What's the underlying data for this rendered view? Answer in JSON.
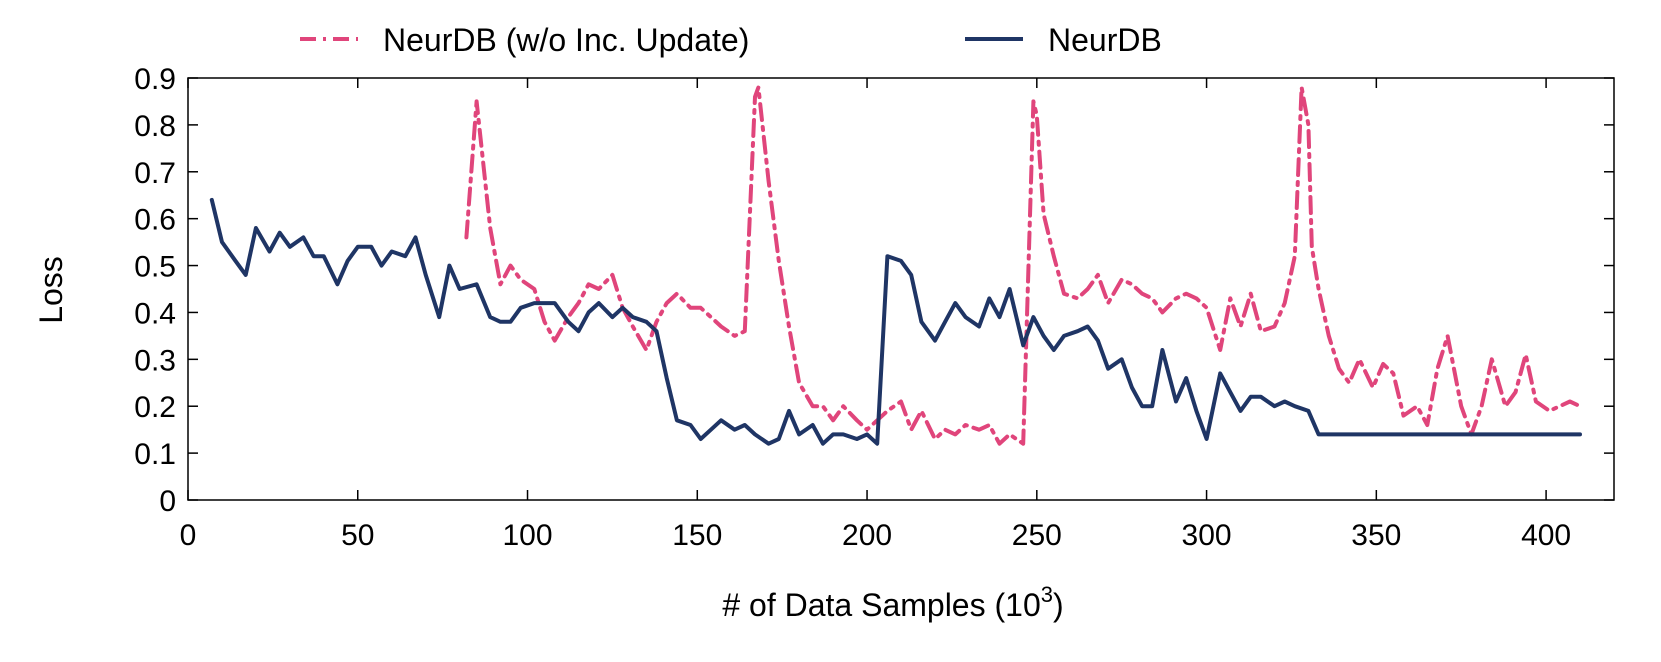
{
  "chart_data": {
    "type": "line",
    "xlabel": "# of Data Samples (10",
    "xlabel_superscript": "3",
    "xlabel_suffix": ")",
    "ylabel": "Loss",
    "xlim": [
      0,
      420
    ],
    "ylim": [
      0,
      0.9
    ],
    "xticks": [
      0,
      50,
      100,
      150,
      200,
      250,
      300,
      350,
      400
    ],
    "yticks": [
      0,
      0.1,
      0.2,
      0.3,
      0.4,
      0.5,
      0.6,
      0.7,
      0.8,
      0.9
    ],
    "ytick_labels": [
      "0",
      "0.1",
      "0.2",
      "0.3",
      "0.4",
      "0.5",
      "0.6",
      "0.7",
      "0.8",
      "0.9"
    ],
    "legend_position": "top",
    "series": [
      {
        "name": "NeurDB (w/o Inc. Update)",
        "color": "#e0457b",
        "style": "dash-dot",
        "x": [
          82,
          85,
          89,
          92,
          95,
          98,
          102,
          105,
          108,
          112,
          115,
          118,
          121,
          125,
          128,
          131,
          135,
          138,
          141,
          144,
          148,
          151,
          154,
          157,
          161,
          164,
          167,
          168,
          171,
          174,
          177,
          180,
          184,
          187,
          190,
          193,
          197,
          200,
          203,
          206,
          210,
          213,
          216,
          220,
          223,
          226,
          229,
          233,
          236,
          239,
          242,
          246,
          249,
          250,
          252,
          255,
          258,
          262,
          265,
          268,
          271,
          275,
          278,
          281,
          284,
          287,
          291,
          294,
          297,
          300,
          304,
          307,
          310,
          313,
          316,
          320,
          323,
          326,
          328,
          330,
          331,
          333,
          336,
          339,
          342,
          345,
          349,
          352,
          355,
          358,
          362,
          365,
          368,
          371,
          375,
          378,
          381,
          384,
          388,
          391,
          394,
          397,
          401,
          404,
          407,
          410
        ],
        "y": [
          0.56,
          0.85,
          0.58,
          0.46,
          0.5,
          0.47,
          0.45,
          0.38,
          0.34,
          0.39,
          0.42,
          0.46,
          0.45,
          0.48,
          0.41,
          0.37,
          0.32,
          0.38,
          0.42,
          0.44,
          0.41,
          0.41,
          0.39,
          0.37,
          0.35,
          0.36,
          0.86,
          0.88,
          0.68,
          0.51,
          0.37,
          0.25,
          0.2,
          0.2,
          0.17,
          0.2,
          0.17,
          0.15,
          0.17,
          0.19,
          0.21,
          0.15,
          0.19,
          0.13,
          0.15,
          0.14,
          0.16,
          0.15,
          0.16,
          0.12,
          0.14,
          0.12,
          0.85,
          0.82,
          0.61,
          0.52,
          0.44,
          0.43,
          0.45,
          0.48,
          0.42,
          0.47,
          0.46,
          0.44,
          0.43,
          0.4,
          0.43,
          0.44,
          0.43,
          0.41,
          0.32,
          0.43,
          0.37,
          0.44,
          0.36,
          0.37,
          0.42,
          0.52,
          0.88,
          0.8,
          0.54,
          0.45,
          0.35,
          0.28,
          0.25,
          0.3,
          0.24,
          0.29,
          0.27,
          0.18,
          0.2,
          0.16,
          0.28,
          0.35,
          0.2,
          0.14,
          0.2,
          0.3,
          0.2,
          0.23,
          0.31,
          0.21,
          0.19,
          0.2,
          0.21,
          0.2
        ]
      },
      {
        "name": "NeurDB",
        "color": "#1f3565",
        "style": "solid",
        "x": [
          7,
          10,
          14,
          17,
          20,
          24,
          27,
          30,
          34,
          37,
          40,
          44,
          47,
          50,
          54,
          57,
          60,
          64,
          67,
          70,
          74,
          77,
          80,
          85,
          89,
          92,
          95,
          98,
          102,
          105,
          108,
          112,
          115,
          118,
          121,
          125,
          128,
          131,
          135,
          138,
          141,
          144,
          148,
          151,
          154,
          157,
          161,
          164,
          167,
          171,
          174,
          177,
          180,
          184,
          187,
          190,
          193,
          197,
          200,
          203,
          206,
          210,
          213,
          216,
          220,
          223,
          226,
          229,
          233,
          236,
          239,
          242,
          246,
          249,
          252,
          255,
          258,
          262,
          265,
          268,
          271,
          275,
          278,
          281,
          284,
          287,
          291,
          294,
          297,
          300,
          304,
          307,
          310,
          313,
          316,
          320,
          323,
          326,
          330,
          333,
          336,
          339,
          342,
          345,
          349,
          352,
          355,
          358,
          362,
          365,
          368,
          371,
          375,
          378,
          381,
          384,
          388,
          391,
          394,
          397,
          401,
          404,
          407,
          410
        ],
        "y": [
          0.64,
          0.55,
          0.51,
          0.48,
          0.58,
          0.53,
          0.57,
          0.54,
          0.56,
          0.52,
          0.52,
          0.46,
          0.51,
          0.54,
          0.54,
          0.5,
          0.53,
          0.52,
          0.56,
          0.48,
          0.39,
          0.5,
          0.45,
          0.46,
          0.39,
          0.38,
          0.38,
          0.41,
          0.42,
          0.42,
          0.42,
          0.38,
          0.36,
          0.4,
          0.42,
          0.39,
          0.41,
          0.39,
          0.38,
          0.36,
          0.26,
          0.17,
          0.16,
          0.13,
          0.15,
          0.17,
          0.15,
          0.16,
          0.14,
          0.12,
          0.13,
          0.19,
          0.14,
          0.16,
          0.12,
          0.14,
          0.14,
          0.13,
          0.14,
          0.12,
          0.52,
          0.51,
          0.48,
          0.38,
          0.34,
          0.38,
          0.42,
          0.39,
          0.37,
          0.43,
          0.39,
          0.45,
          0.33,
          0.39,
          0.35,
          0.32,
          0.35,
          0.36,
          0.37,
          0.34,
          0.28,
          0.3,
          0.24,
          0.2,
          0.2,
          0.32,
          0.21,
          0.26,
          0.19,
          0.13,
          0.27,
          0.23,
          0.19,
          0.22,
          0.22,
          0.2,
          0.21,
          0.2,
          0.19,
          0.14,
          0.14,
          0.14,
          0.14,
          0.14,
          0.14,
          0.14,
          0.14,
          0.14,
          0.14,
          0.14,
          0.14,
          0.14,
          0.14,
          0.14,
          0.14,
          0.14,
          0.14,
          0.14,
          0.14,
          0.14,
          0.14,
          0.14,
          0.14,
          0.14
        ]
      }
    ]
  }
}
